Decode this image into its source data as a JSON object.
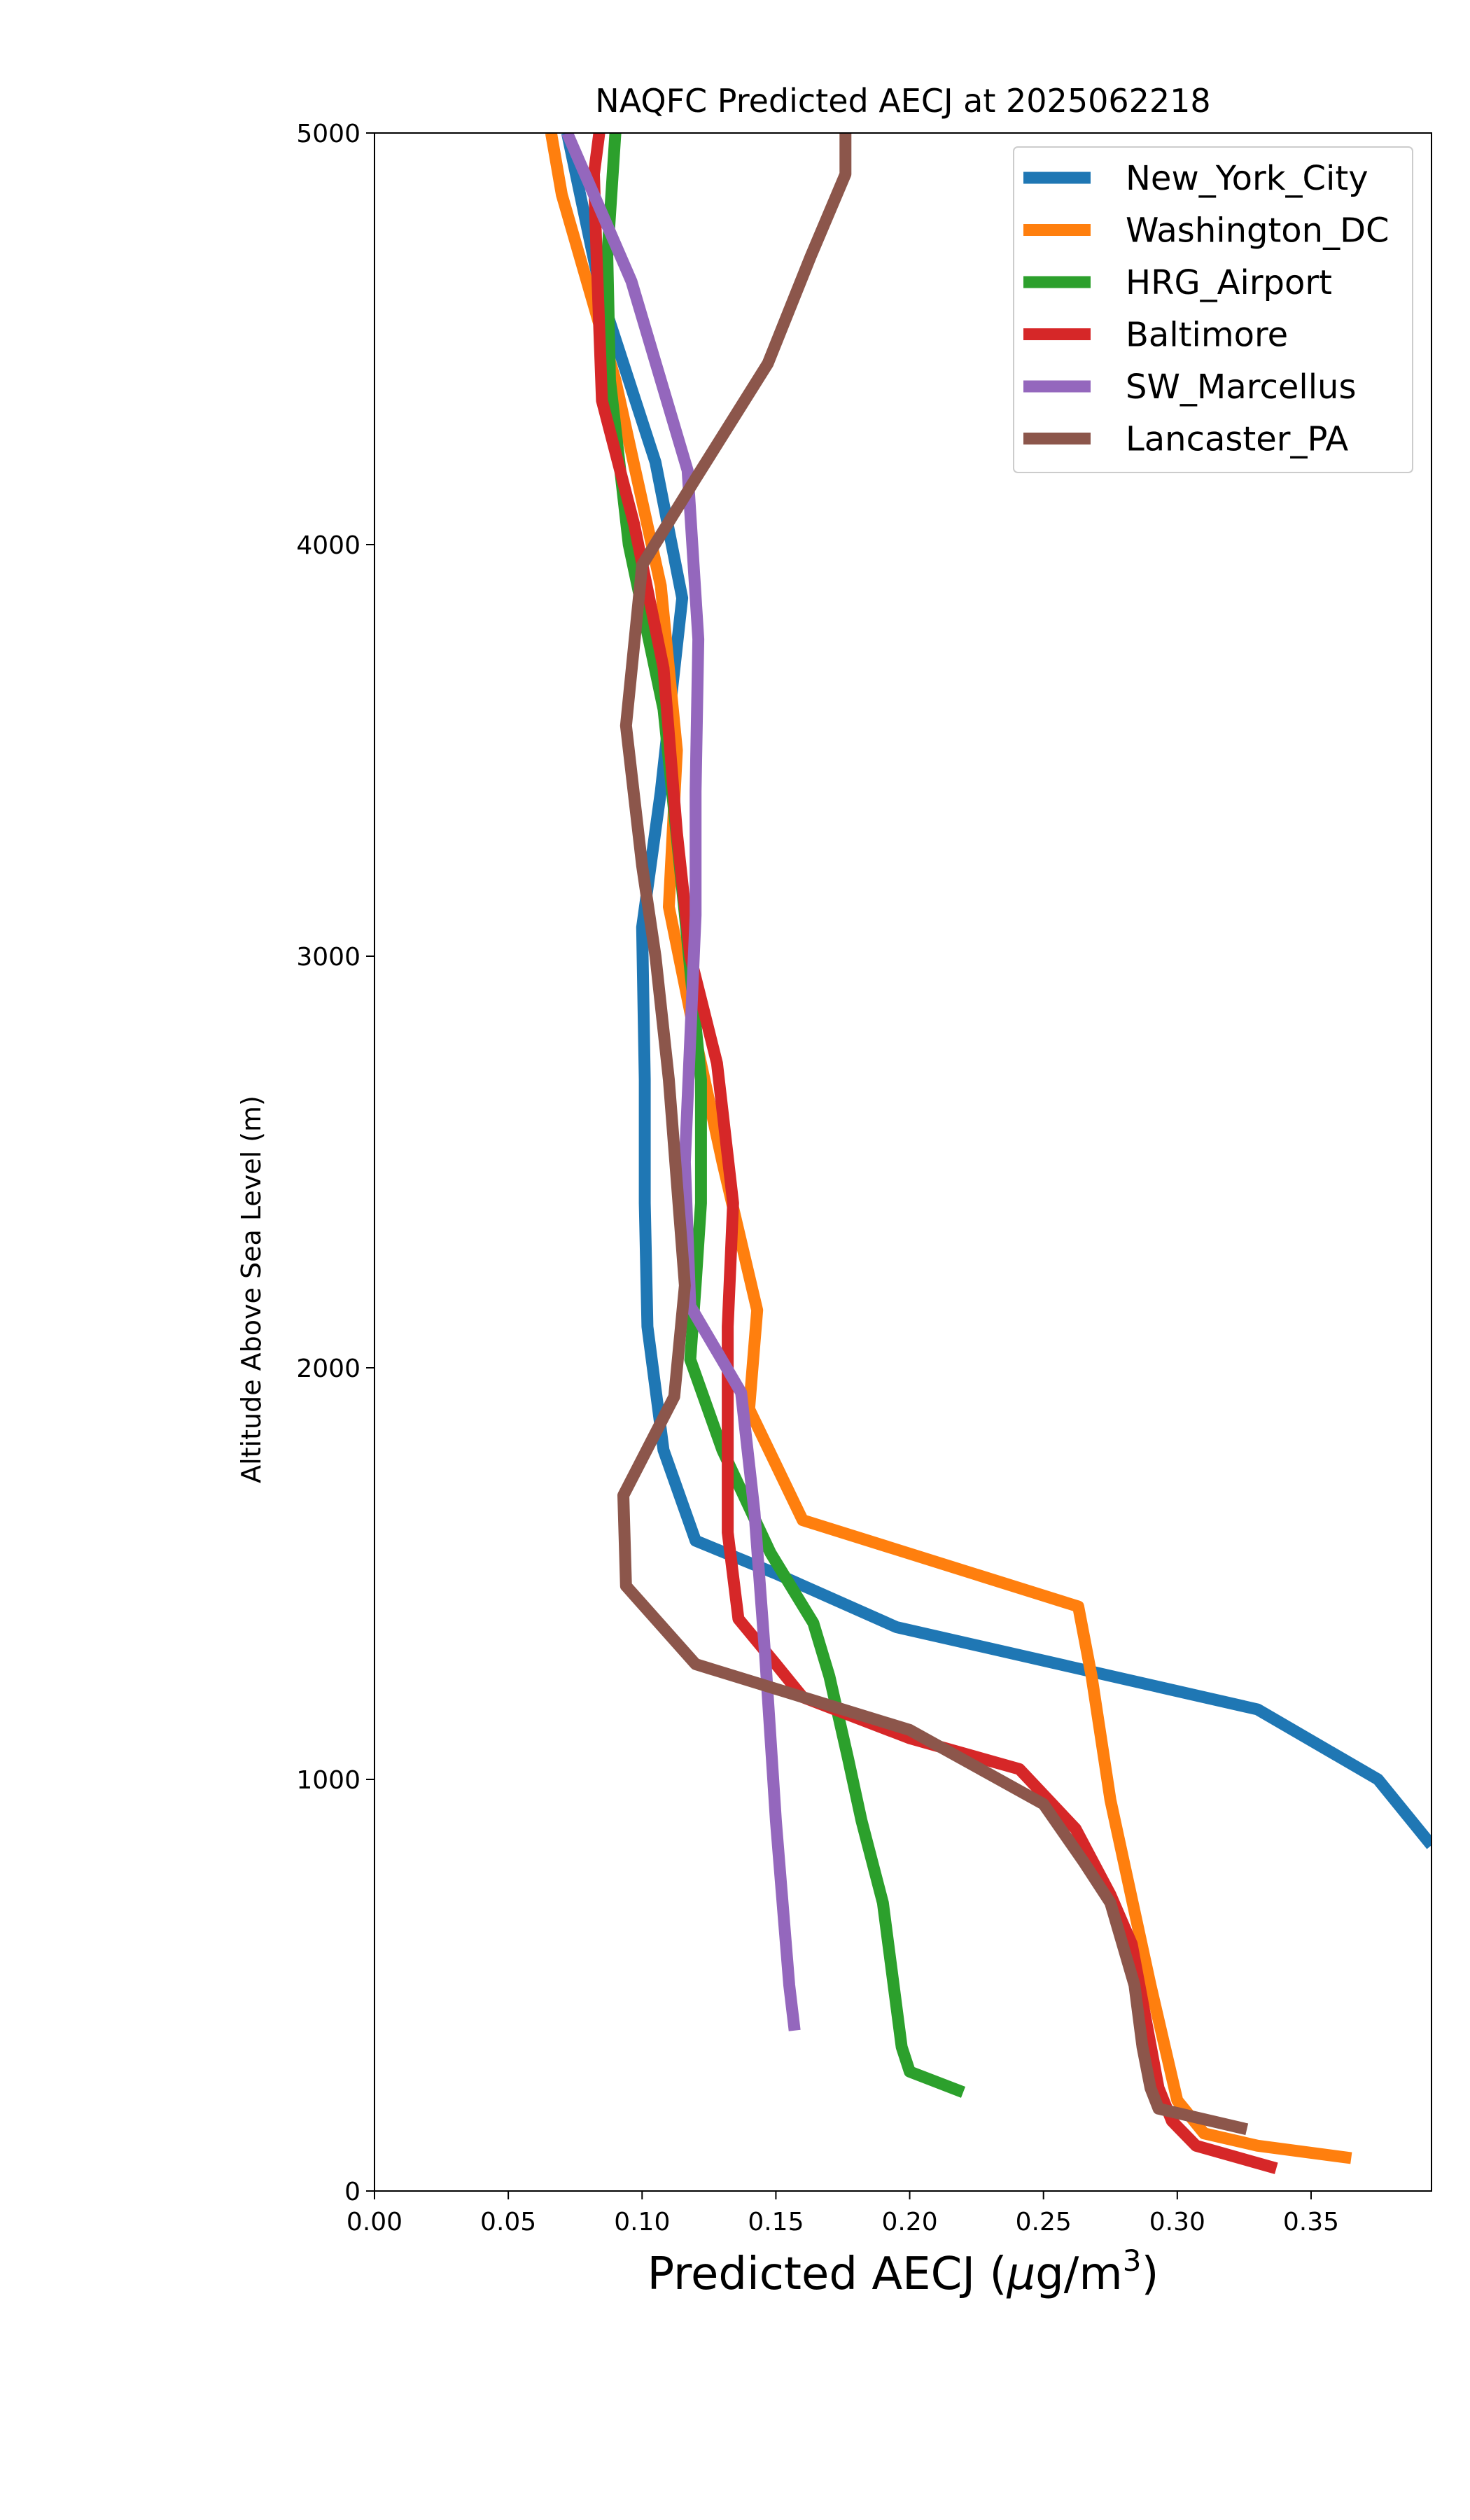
{
  "chart_data": {
    "type": "line",
    "title": "NAQFC Predicted AECJ at 2025062218",
    "xlabel": "Predicted AECJ (μg/m³)",
    "xlabel_main": "Predicted AECJ (",
    "xlabel_mu": "μ",
    "xlabel_unit": "g/m",
    "xlabel_sup": "3",
    "xlabel_close": ")",
    "ylabel": "Altitude Above Sea Level (m)",
    "xlim": [
      0,
      0.395
    ],
    "ylim": [
      0,
      5000
    ],
    "xticks": [
      0,
      0.05,
      0.1,
      0.15,
      0.2,
      0.25,
      0.3,
      0.35
    ],
    "xtick_labels": [
      "0.00",
      "0.05",
      "0.10",
      "0.15",
      "0.20",
      "0.25",
      "0.30",
      "0.35"
    ],
    "yticks": [
      0,
      1000,
      2000,
      3000,
      4000,
      5000
    ],
    "ytick_labels": [
      "0",
      "1000",
      "2000",
      "3000",
      "4000",
      "5000"
    ],
    "grid": false,
    "legend_position": "top-right",
    "series": [
      {
        "name": "New_York_City",
        "color": "#1f77b4",
        "points": [
          [
            0.395,
            840
          ],
          [
            0.375,
            1000
          ],
          [
            0.33,
            1170
          ],
          [
            0.195,
            1370
          ],
          [
            0.15,
            1500
          ],
          [
            0.12,
            1580
          ],
          [
            0.108,
            1800
          ],
          [
            0.102,
            2100
          ],
          [
            0.101,
            2400
          ],
          [
            0.101,
            2700
          ],
          [
            0.1,
            3070
          ],
          [
            0.107,
            3400
          ],
          [
            0.115,
            3870
          ],
          [
            0.105,
            4200
          ],
          [
            0.085,
            4600
          ],
          [
            0.072,
            5000
          ]
        ]
      },
      {
        "name": "Washington_DC",
        "color": "#ff7f0e",
        "points": [
          [
            0.365,
            80
          ],
          [
            0.33,
            110
          ],
          [
            0.31,
            140
          ],
          [
            0.3,
            220
          ],
          [
            0.29,
            500
          ],
          [
            0.275,
            950
          ],
          [
            0.268,
            1250
          ],
          [
            0.263,
            1420
          ],
          [
            0.16,
            1630
          ],
          [
            0.14,
            1900
          ],
          [
            0.143,
            2140
          ],
          [
            0.13,
            2500
          ],
          [
            0.12,
            2800
          ],
          [
            0.11,
            3120
          ],
          [
            0.113,
            3500
          ],
          [
            0.107,
            3900
          ],
          [
            0.09,
            4400
          ],
          [
            0.07,
            4850
          ],
          [
            0.066,
            5000
          ]
        ]
      },
      {
        "name": "HRG_Airport",
        "color": "#2ca02c",
        "points": [
          [
            0.22,
            240
          ],
          [
            0.2,
            290
          ],
          [
            0.197,
            350
          ],
          [
            0.19,
            700
          ],
          [
            0.182,
            900
          ],
          [
            0.177,
            1050
          ],
          [
            0.17,
            1250
          ],
          [
            0.164,
            1380
          ],
          [
            0.148,
            1550
          ],
          [
            0.13,
            1800
          ],
          [
            0.118,
            2020
          ],
          [
            0.12,
            2200
          ],
          [
            0.122,
            2400
          ],
          [
            0.122,
            2700
          ],
          [
            0.116,
            3100
          ],
          [
            0.108,
            3600
          ],
          [
            0.095,
            4000
          ],
          [
            0.088,
            4400
          ],
          [
            0.087,
            4700
          ],
          [
            0.09,
            5000
          ]
        ]
      },
      {
        "name": "Baltimore",
        "color": "#d62728",
        "points": [
          [
            0.337,
            55
          ],
          [
            0.307,
            110
          ],
          [
            0.298,
            170
          ],
          [
            0.293,
            250
          ],
          [
            0.283,
            600
          ],
          [
            0.275,
            720
          ],
          [
            0.262,
            880
          ],
          [
            0.241,
            1025
          ],
          [
            0.2,
            1100
          ],
          [
            0.16,
            1200
          ],
          [
            0.15,
            1280
          ],
          [
            0.136,
            1390
          ],
          [
            0.132,
            1600
          ],
          [
            0.132,
            2100
          ],
          [
            0.134,
            2400
          ],
          [
            0.128,
            2740
          ],
          [
            0.118,
            3000
          ],
          [
            0.113,
            3300
          ],
          [
            0.108,
            3700
          ],
          [
            0.097,
            4050
          ],
          [
            0.085,
            4350
          ],
          [
            0.083,
            4700
          ],
          [
            0.082,
            4900
          ],
          [
            0.084,
            5000
          ]
        ]
      },
      {
        "name": "SW_Marcellus",
        "color": "#9467bd",
        "points": [
          [
            0.157,
            390
          ],
          [
            0.155,
            500
          ],
          [
            0.15,
            900
          ],
          [
            0.146,
            1300
          ],
          [
            0.142,
            1650
          ],
          [
            0.137,
            1940
          ],
          [
            0.118,
            2150
          ],
          [
            0.116,
            2500
          ],
          [
            0.118,
            2800
          ],
          [
            0.12,
            3100
          ],
          [
            0.12,
            3400
          ],
          [
            0.121,
            3770
          ],
          [
            0.117,
            4180
          ],
          [
            0.096,
            4640
          ],
          [
            0.072,
            5000
          ]
        ]
      },
      {
        "name": "Lancaster_PA",
        "color": "#8c564b",
        "points": [
          [
            0.326,
            150
          ],
          [
            0.293,
            200
          ],
          [
            0.29,
            250
          ],
          [
            0.287,
            350
          ],
          [
            0.284,
            500
          ],
          [
            0.275,
            700
          ],
          [
            0.265,
            800
          ],
          [
            0.25,
            940
          ],
          [
            0.2,
            1120
          ],
          [
            0.16,
            1200
          ],
          [
            0.12,
            1280
          ],
          [
            0.094,
            1470
          ],
          [
            0.093,
            1690
          ],
          [
            0.112,
            1930
          ],
          [
            0.116,
            2200
          ],
          [
            0.11,
            2700
          ],
          [
            0.105,
            3000
          ],
          [
            0.1,
            3220
          ],
          [
            0.094,
            3560
          ],
          [
            0.1,
            3950
          ],
          [
            0.12,
            4160
          ],
          [
            0.147,
            4440
          ],
          [
            0.163,
            4700
          ],
          [
            0.176,
            4900
          ],
          [
            0.176,
            5000
          ]
        ]
      }
    ]
  }
}
